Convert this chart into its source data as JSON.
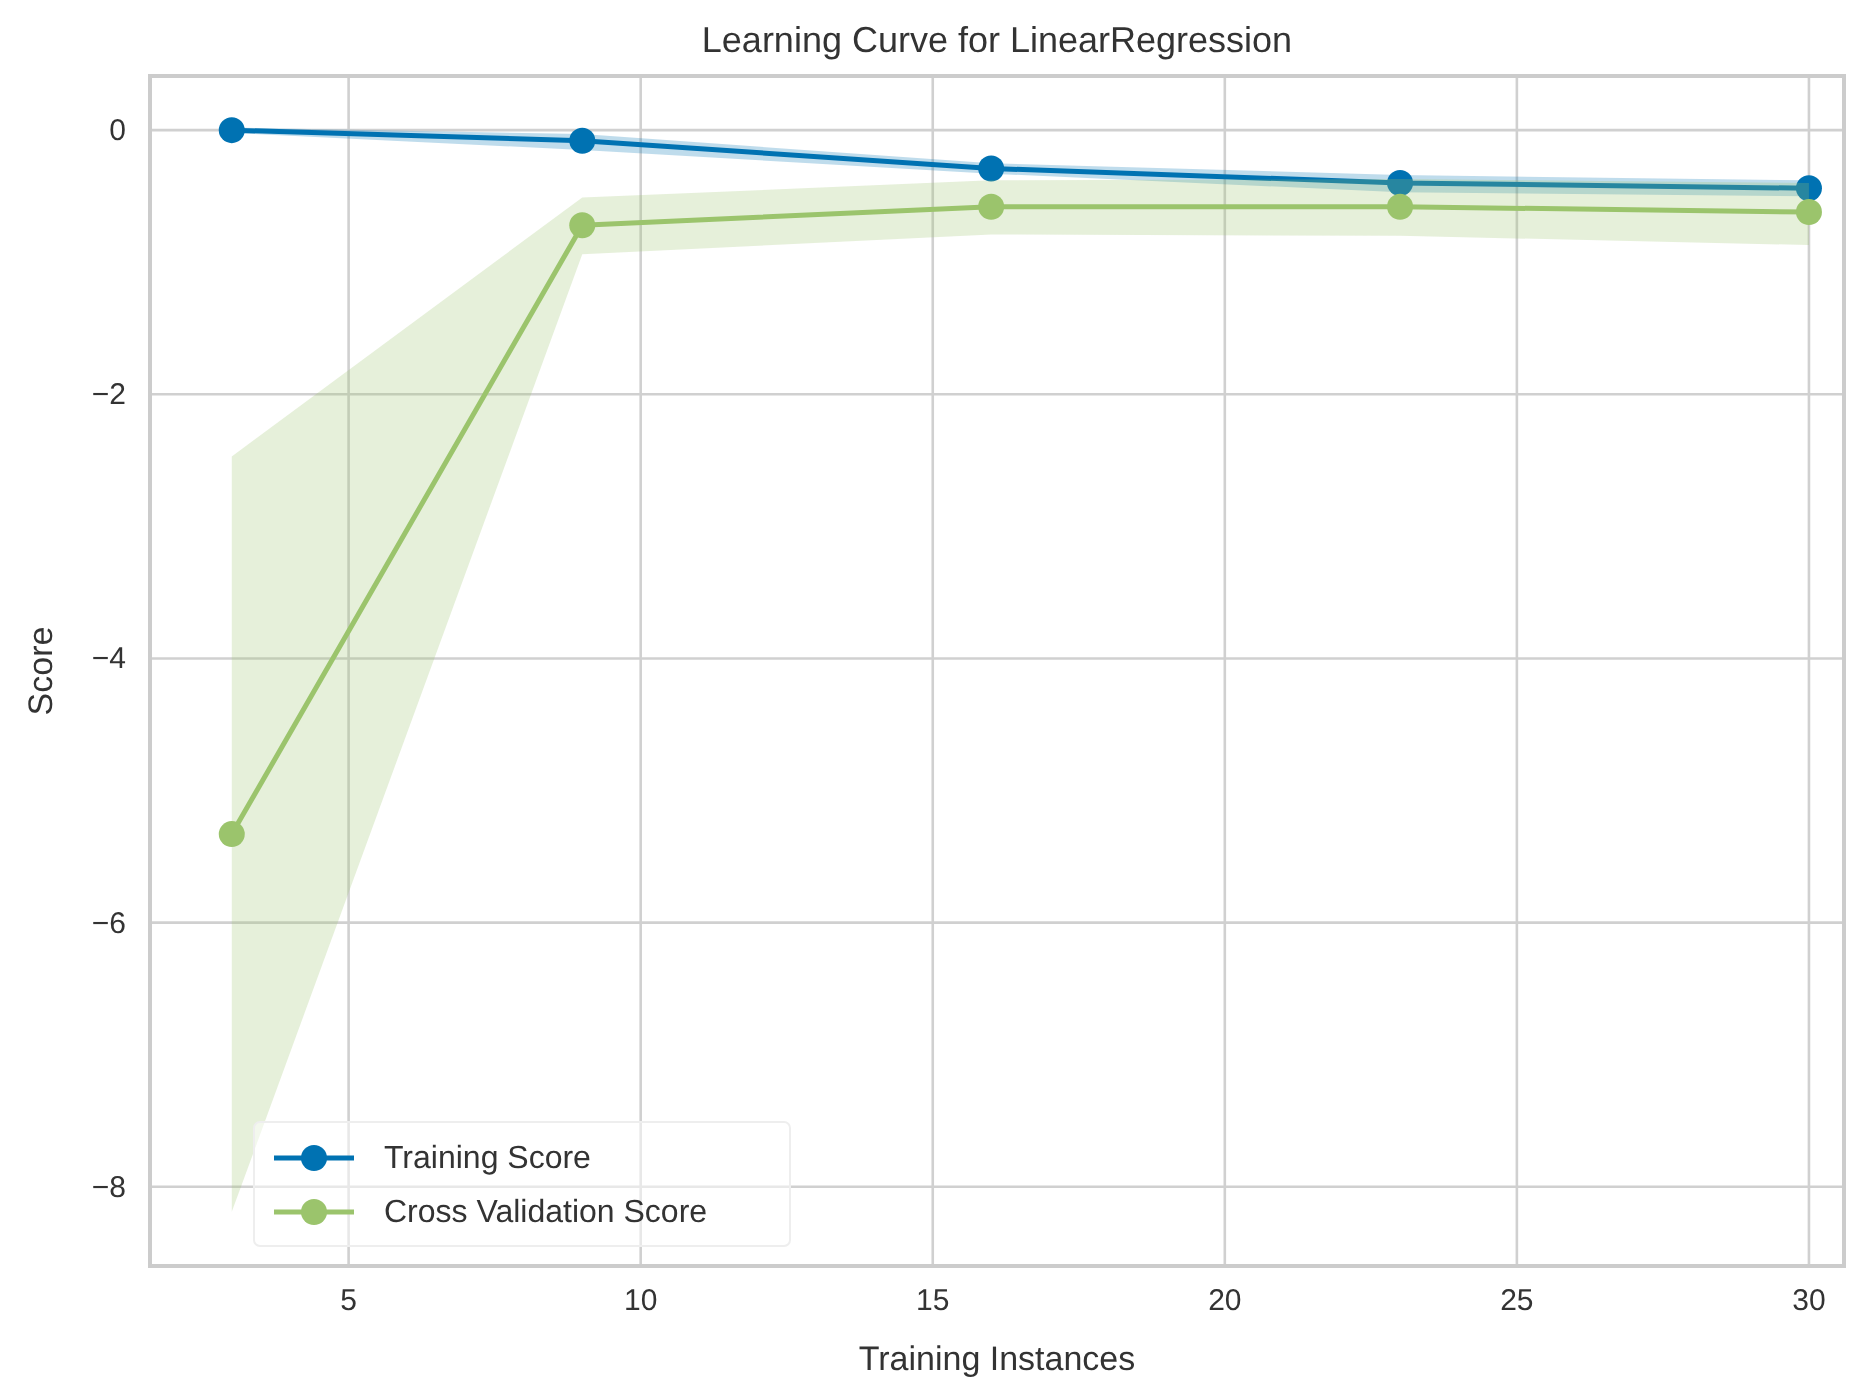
{
  "chart_data": {
    "type": "line",
    "title": "Learning Curve for LinearRegression",
    "xlabel": "Training Instances",
    "ylabel": "Score",
    "x": [
      3,
      9,
      16,
      23,
      30
    ],
    "series": [
      {
        "name": "Training Score",
        "color": "#0072b2",
        "values": [
          0,
          -0.08,
          -0.29,
          -0.4,
          -0.44
        ],
        "lower": [
          -0.02,
          -0.15,
          -0.33,
          -0.47,
          -0.5
        ],
        "upper": [
          0.02,
          -0.03,
          -0.25,
          -0.34,
          -0.38
        ]
      },
      {
        "name": "Cross Validation Score",
        "color": "#9bc46c",
        "values": [
          -5.33,
          -0.72,
          -0.58,
          -0.58,
          -0.62
        ],
        "lower": [
          -8.19,
          -0.94,
          -0.79,
          -0.8,
          -0.87
        ],
        "upper": [
          -2.47,
          -0.51,
          -0.38,
          -0.37,
          -0.4
        ]
      }
    ],
    "xlim": [
      1.6,
      30.6
    ],
    "ylim": [
      -8.6,
      0.41
    ],
    "xticks": [
      5,
      10,
      15,
      20,
      25,
      30
    ],
    "yticks": [
      {
        "value": 0,
        "label": "0"
      },
      {
        "value": -2,
        "label": "−2"
      },
      {
        "value": -4,
        "label": "−4"
      },
      {
        "value": -6,
        "label": "−6"
      },
      {
        "value": -8,
        "label": "−8"
      }
    ],
    "grid": true,
    "legend": "bottom left",
    "marker": "circle",
    "line_style": "solid"
  }
}
